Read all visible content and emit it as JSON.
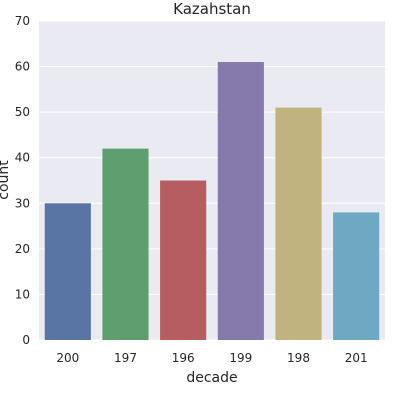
{
  "chart_data": {
    "type": "bar",
    "title": "Kazahstan",
    "xlabel": "decade",
    "ylabel": "count",
    "categories": [
      "200",
      "197",
      "196",
      "199",
      "198",
      "201"
    ],
    "values": [
      30,
      42,
      35,
      61,
      51,
      28
    ],
    "colors": [
      "#5975a4",
      "#5f9e6e",
      "#b55d60",
      "#857aab",
      "#c1b37f",
      "#6ea8c3"
    ],
    "ylim": [
      0,
      70
    ],
    "yticks": [
      0,
      10,
      20,
      30,
      40,
      50,
      60,
      70
    ],
    "grid": true,
    "background": "#eaeaf2"
  }
}
